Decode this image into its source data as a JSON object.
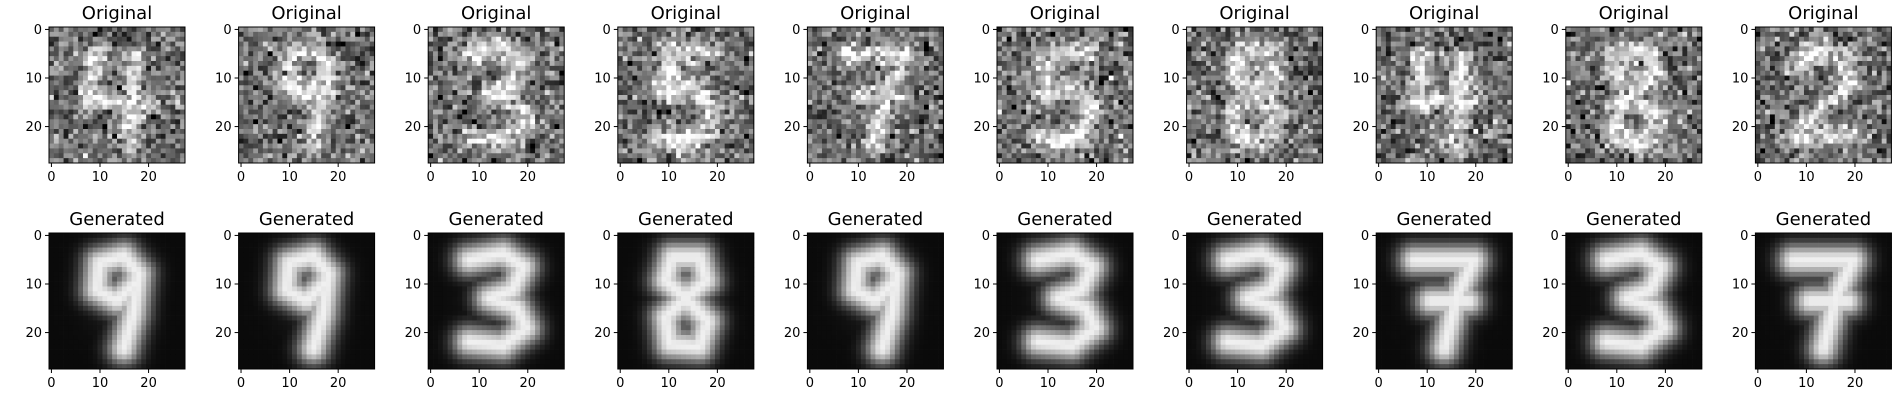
{
  "chart_data": {
    "type": "image-grid",
    "rows": [
      {
        "title": "Original",
        "panels": [
          "Original",
          "Original",
          "Original",
          "Original",
          "Original",
          "Original",
          "Original",
          "Original",
          "Original",
          "Original"
        ],
        "digits": [
          "4",
          "9",
          "3",
          "5",
          "7",
          "5",
          "8",
          "4",
          "8",
          "2"
        ],
        "noisy": true
      },
      {
        "title": "Generated",
        "panels": [
          "Generated",
          "Generated",
          "Generated",
          "Generated",
          "Generated",
          "Generated",
          "Generated",
          "Generated",
          "Generated",
          "Generated"
        ],
        "digits": [
          "9",
          "9",
          "3",
          "8",
          "9",
          "3",
          "3",
          "7",
          "3",
          "7"
        ],
        "noisy": false
      }
    ],
    "image_size": [
      28,
      28
    ],
    "xticks": [
      "0",
      "10",
      "20"
    ],
    "yticks": [
      "0",
      "10",
      "20"
    ],
    "colormap": "gray",
    "grid": false
  }
}
